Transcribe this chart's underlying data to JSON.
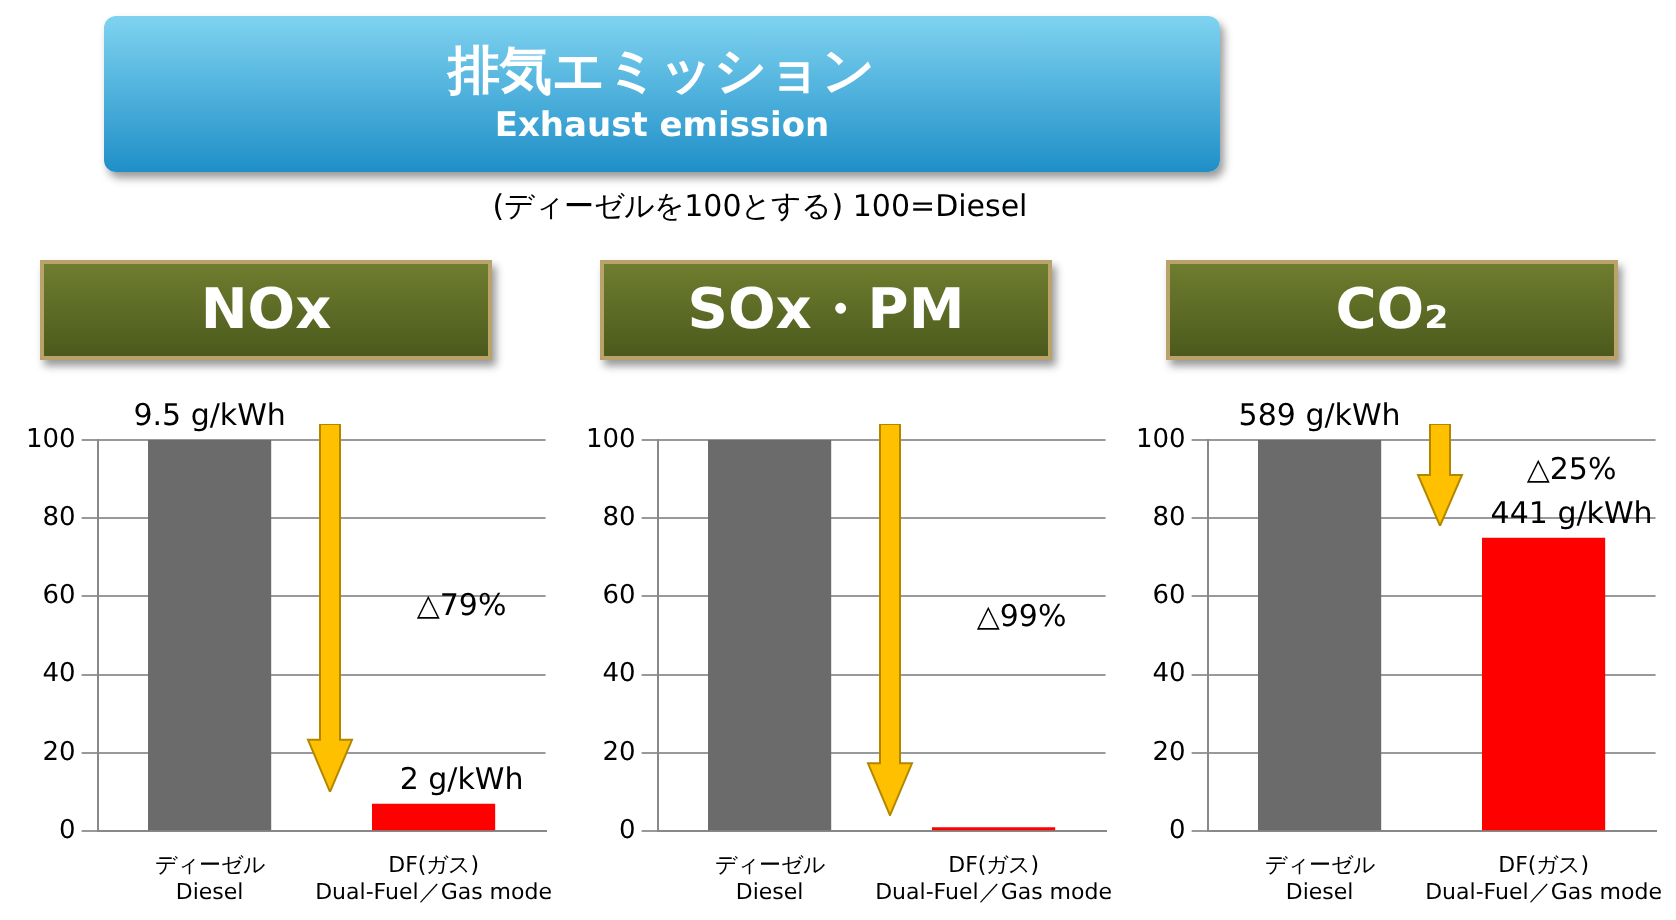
{
  "chart_data": [
    {
      "type": "other",
      "title": "排気エミッション",
      "subtitle": "Exhaust emission",
      "annotations": [
        "(ディーゼルを100とする) 100=Diesel"
      ]
    },
    {
      "type": "bar",
      "title": "NOx",
      "categories": [
        "ディーゼル\nDiesel",
        "DF(ガス)\nDual-Fuel／Gas mode"
      ],
      "values": [
        100,
        7
      ],
      "colors": [
        "#6b6b6b",
        "#ff0000"
      ],
      "ylim": [
        0,
        100
      ],
      "yticks": [
        0,
        20,
        40,
        60,
        80,
        100
      ],
      "grid": "y",
      "legend": false,
      "annotations": [
        {
          "text": "9.5 g/kWh",
          "x": "ディーゼル\nDiesel",
          "y": 100
        },
        "△79%",
        {
          "text": "2 g/kWh",
          "x": "DF(ガス)\nDual-Fuel／Gas mode",
          "y": 7
        }
      ]
    },
    {
      "type": "bar",
      "title": "SOx・PM",
      "categories": [
        "ディーゼル\nDiesel",
        "DF(ガス)\nDual-Fuel／Gas mode"
      ],
      "values": [
        100,
        1
      ],
      "colors": [
        "#6b6b6b",
        "#ff0000"
      ],
      "ylim": [
        0,
        100
      ],
      "yticks": [
        0,
        20,
        40,
        60,
        80,
        100
      ],
      "grid": "y",
      "legend": false,
      "annotations": [
        "△99%"
      ]
    },
    {
      "type": "bar",
      "title": "CO₂",
      "categories": [
        "ディーゼル\nDiesel",
        "DF(ガス)\nDual-Fuel／Gas mode"
      ],
      "values": [
        100,
        75
      ],
      "colors": [
        "#6b6b6b",
        "#ff0000"
      ],
      "ylim": [
        0,
        100
      ],
      "yticks": [
        0,
        20,
        40,
        60,
        80,
        100
      ],
      "grid": "y",
      "legend": false,
      "annotations": [
        {
          "text": "589 g/kWh",
          "x": "ディーゼル\nDiesel",
          "y": 100
        },
        "△25%",
        {
          "text": "441 g/kWh",
          "x": "DF(ガス)\nDual-Fuel／Gas mode",
          "y": 75
        }
      ]
    }
  ]
}
